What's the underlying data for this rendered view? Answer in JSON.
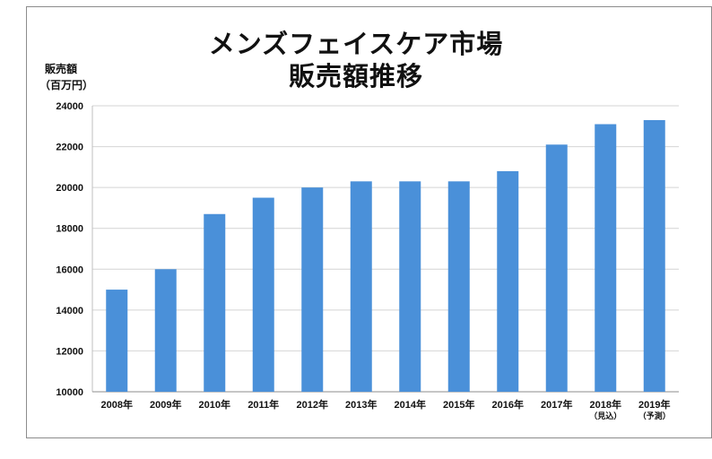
{
  "chart_data": {
    "type": "bar",
    "title_lines": [
      "メンズフェイスケア市場",
      "販売額推移"
    ],
    "ylabel_lines": [
      "販売額",
      "（百万円）"
    ],
    "categories": [
      {
        "label": "2008年",
        "sub": ""
      },
      {
        "label": "2009年",
        "sub": ""
      },
      {
        "label": "2010年",
        "sub": ""
      },
      {
        "label": "2011年",
        "sub": ""
      },
      {
        "label": "2012年",
        "sub": ""
      },
      {
        "label": "2013年",
        "sub": ""
      },
      {
        "label": "2014年",
        "sub": ""
      },
      {
        "label": "2015年",
        "sub": ""
      },
      {
        "label": "2016年",
        "sub": ""
      },
      {
        "label": "2017年",
        "sub": ""
      },
      {
        "label": "2018年",
        "sub": "（見込）"
      },
      {
        "label": "2019年",
        "sub": "（予測）"
      }
    ],
    "values": [
      15000,
      16000,
      18700,
      19500,
      20000,
      20300,
      20300,
      20300,
      20800,
      22100,
      23100,
      23300
    ],
    "ylim": [
      10000,
      24000
    ],
    "yticks": [
      10000,
      12000,
      14000,
      16000,
      18000,
      20000,
      22000,
      24000
    ],
    "grid": true,
    "bar_color": "#4a90d9"
  }
}
